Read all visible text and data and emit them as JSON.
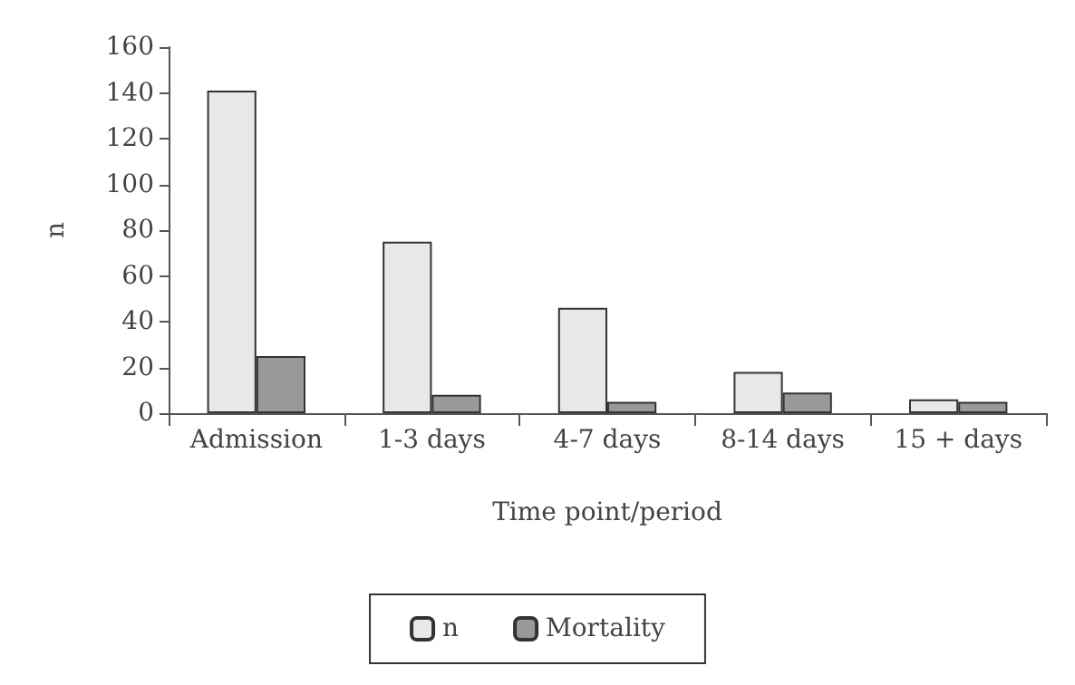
{
  "chart_data": {
    "type": "bar",
    "xlabel": "Time point/period",
    "ylabel": "n",
    "categories": [
      "Admission",
      "1-3 days",
      "4-7 days",
      "8-14 days",
      "15 + days"
    ],
    "series": [
      {
        "name": "n",
        "color": "#e8e8e8",
        "values": [
          141,
          75,
          46,
          18,
          6
        ]
      },
      {
        "name": "Mortality",
        "color": "#999999",
        "values": [
          25,
          8,
          5,
          9,
          5
        ]
      }
    ],
    "ylim": [
      0,
      160
    ],
    "yticks": [
      0,
      20,
      40,
      60,
      80,
      100,
      120,
      140,
      160
    ],
    "grid": false,
    "legend": "bottom"
  }
}
